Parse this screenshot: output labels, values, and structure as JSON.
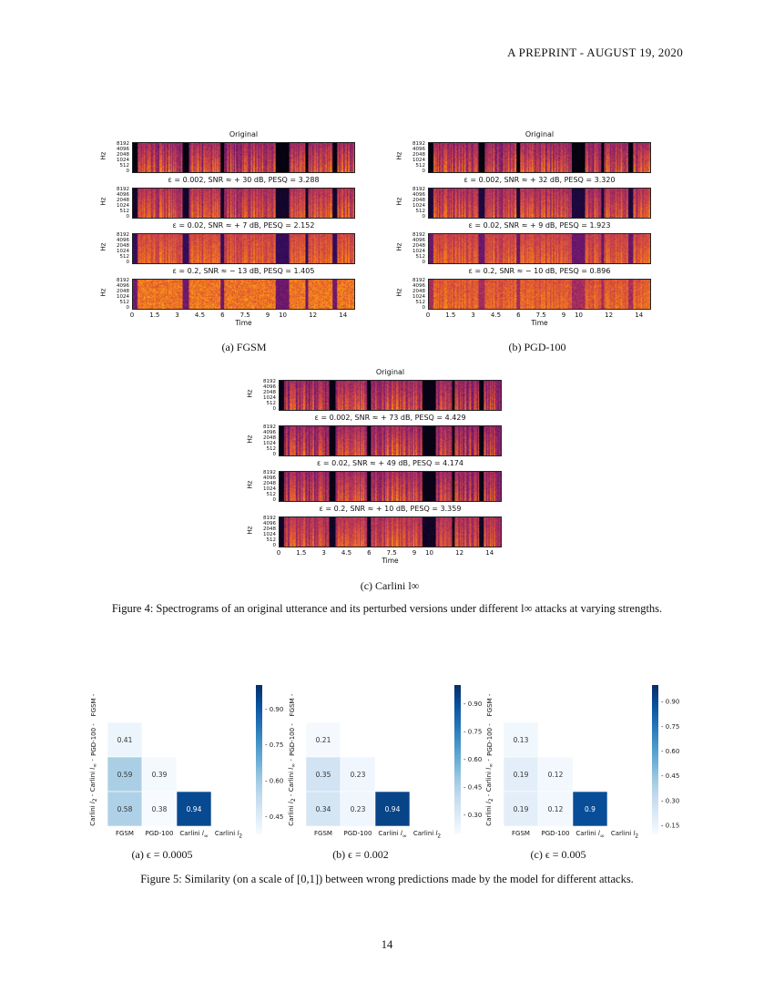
{
  "header": {
    "text": "A PREPRINT - AUGUST 19, 2020"
  },
  "spectrogram_figures": [
    {
      "id": "a",
      "caption": "(a) FGSM",
      "panels": [
        {
          "title": "Original",
          "noise": 0.0
        },
        {
          "title": "ε = 0.002, SNR ≈ + 30 dB, PESQ = 3.288",
          "noise": 0.15
        },
        {
          "title": "ε = 0.02, SNR ≈ + 7 dB, PESQ = 2.152",
          "noise": 0.45
        },
        {
          "title": "ε = 0.2, SNR ≈ − 13 dB, PESQ = 1.405",
          "noise": 0.85
        }
      ]
    },
    {
      "id": "b",
      "caption": "(b) PGD-100",
      "panels": [
        {
          "title": "Original",
          "noise": 0.0
        },
        {
          "title": "ε = 0.002, SNR ≈ + 32 dB, PESQ = 3.320",
          "noise": 0.12
        },
        {
          "title": "ε = 0.02, SNR ≈ + 9 dB, PESQ = 1.923",
          "noise": 0.4
        },
        {
          "title": "ε = 0.2, SNR ≈ − 10 dB, PESQ = 0.896",
          "noise": 0.6
        }
      ]
    },
    {
      "id": "c",
      "caption": "(c) Carlini l∞",
      "panels": [
        {
          "title": "Original",
          "noise": 0.0
        },
        {
          "title": "ε = 0.002, SNR ≈ + 73 dB, PESQ = 4.429",
          "noise": 0.0
        },
        {
          "title": "ε = 0.02, SNR ≈ + 49 dB, PESQ = 4.174",
          "noise": 0.03
        },
        {
          "title": "ε = 0.2, SNR ≈ + 10 dB, PESQ = 3.359",
          "noise": 0.2
        }
      ]
    }
  ],
  "spectrogram_axes": {
    "ylabel": "Hz",
    "xlabel": "Time",
    "yticks": [
      "8192",
      "4096",
      "2048",
      "1024",
      "512",
      "0"
    ],
    "xticks": [
      "0",
      "1.5",
      "3",
      "4.5",
      "6",
      "7.5",
      "9",
      "10",
      "12",
      "14"
    ],
    "xmax": 14.8
  },
  "figure4_caption": "Figure 4: Spectrograms of an original utterance and its perturbed versions under different l∞ attacks at varying strengths.",
  "heatmap_labels": [
    "FGSM",
    "PGD-100",
    "Carlini l∞",
    "Carlini l2"
  ],
  "heatmaps": [
    {
      "caption": "(a) ϵ = 0.0005",
      "values": [
        [
          0.41
        ],
        [
          0.59,
          0.39
        ],
        [
          0.58,
          0.38,
          0.94
        ]
      ],
      "range": [
        0.38,
        1.0
      ],
      "cbar_ticks": [
        "0.90",
        "0.75",
        "0.60",
        "0.45"
      ]
    },
    {
      "caption": "(b) ϵ = 0.002",
      "values": [
        [
          0.21
        ],
        [
          0.35,
          0.23
        ],
        [
          0.34,
          0.23,
          0.94
        ]
      ],
      "range": [
        0.2,
        1.0
      ],
      "cbar_ticks": [
        "0.90",
        "0.75",
        "0.60",
        "0.45",
        "0.30"
      ]
    },
    {
      "caption": "(c) ϵ = 0.005",
      "values": [
        [
          0.13
        ],
        [
          0.19,
          0.12
        ],
        [
          0.19,
          0.12,
          0.9
        ]
      ],
      "range": [
        0.1,
        1.0
      ],
      "cbar_ticks": [
        "0.90",
        "0.75",
        "0.60",
        "0.45",
        "0.30",
        "0.15"
      ]
    }
  ],
  "colormap": "Blues",
  "figure5_caption": "Figure 5: Similarity (on a scale of [0,1]) between wrong predictions made by the model for different attacks.",
  "page_number": "14"
}
